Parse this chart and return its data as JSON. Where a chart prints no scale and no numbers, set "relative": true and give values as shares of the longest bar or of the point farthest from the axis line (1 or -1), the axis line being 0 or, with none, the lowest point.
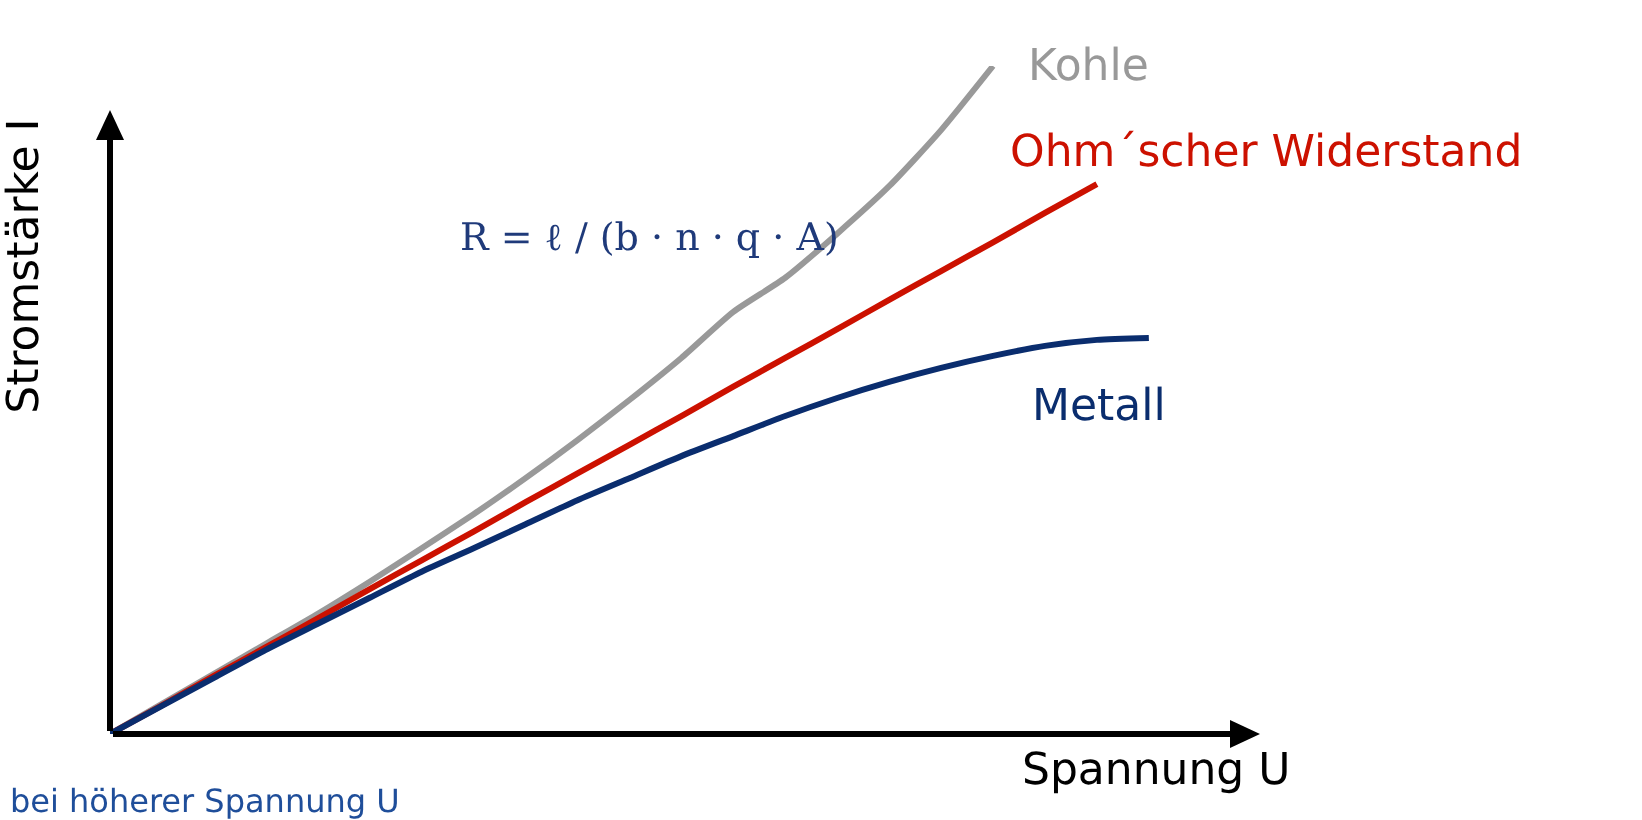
{
  "chart_data": {
    "type": "line",
    "relative": true,
    "xlabel": "Spannung U",
    "ylabel": "Stromstärke I",
    "categories": [
      null,
      null,
      null,
      null,
      null,
      null,
      null,
      null,
      null,
      null,
      null,
      null,
      null,
      null,
      null,
      null,
      null,
      null,
      null,
      null,
      null
    ],
    "series": [
      {
        "name": "Kohle",
        "color": "#999999",
        "values": [
          0,
          0.045,
          0.09,
          0.135,
          0.18,
          0.228,
          0.278,
          0.329,
          0.383,
          0.44,
          0.5,
          0.563,
          0.632,
          0.683,
          0.749,
          0.82,
          0.904,
          1,
          null,
          null,
          null
        ]
      },
      {
        "name": "Ohm´scher Widerstand",
        "color": "#cc1100",
        "values": [
          0,
          0.043,
          0.087,
          0.13,
          0.173,
          0.217,
          0.26,
          0.303,
          0.347,
          0.39,
          0.433,
          0.476,
          0.52,
          0.563,
          0.606,
          0.65,
          0.693,
          0.736,
          0.78,
          0.823,
          null
        ]
      },
      {
        "name": "Metall",
        "color": "#0a2d6e",
        "values": [
          0,
          0.042,
          0.084,
          0.126,
          0.165,
          0.204,
          0.243,
          0.278,
          0.314,
          0.35,
          0.383,
          0.416,
          0.446,
          0.476,
          0.503,
          0.527,
          0.548,
          0.566,
          0.581,
          0.59,
          0.593
        ]
      }
    ],
    "annotations": [
      "R = ℓ / (b · n · q · A)",
      "bei höherer Spannung U"
    ],
    "grid": false,
    "legend": false,
    "marker": "none",
    "line_style": "solid"
  }
}
